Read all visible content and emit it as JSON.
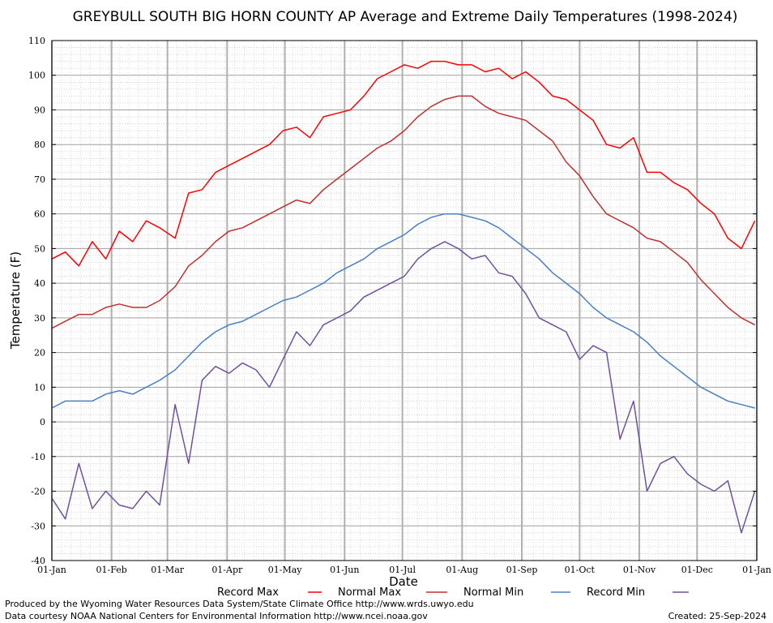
{
  "chart_data": {
    "type": "line",
    "title": "GREYBULL SOUTH BIG HORN COUNTY AP Average and Extreme Daily Temperatures (1998-2024)",
    "xlabel": "Date",
    "ylabel": "Temperature (F)",
    "ylim": [
      -40,
      110
    ],
    "yticks": [
      -40,
      -30,
      -20,
      -10,
      0,
      10,
      20,
      30,
      40,
      50,
      60,
      70,
      80,
      90,
      100,
      110
    ],
    "x_tick_labels": [
      "01-Jan",
      "01-Feb",
      "01-Mar",
      "01-Apr",
      "01-May",
      "01-Jun",
      "01-Jul",
      "01-Aug",
      "01-Sep",
      "01-Oct",
      "01-Nov",
      "01-Dec",
      "01-Jan"
    ],
    "x_tick_dates": [
      "01-Jan",
      "01-Feb",
      "01-Mar",
      "01-Apr",
      "01-May",
      "01-Jun",
      "01-Jul",
      "01-Aug",
      "01-Sep",
      "01-Oct",
      "01-Nov",
      "01-Dec",
      "01-Jan"
    ],
    "grid": true,
    "legend_position": "bottom",
    "series": [
      {
        "name": "Record Max",
        "color": "#ff0000",
        "x": [
          "01-Jan",
          "08-Jan",
          "15-Jan",
          "22-Jan",
          "29-Jan",
          "05-Feb",
          "12-Feb",
          "19-Feb",
          "26-Feb",
          "05-Mar",
          "12-Mar",
          "19-Mar",
          "26-Mar",
          "02-Apr",
          "09-Apr",
          "16-Apr",
          "23-Apr",
          "30-Apr",
          "07-May",
          "14-May",
          "21-May",
          "28-May",
          "04-Jun",
          "11-Jun",
          "18-Jun",
          "25-Jun",
          "02-Jul",
          "09-Jul",
          "16-Jul",
          "23-Jul",
          "30-Jul",
          "06-Aug",
          "13-Aug",
          "20-Aug",
          "27-Aug",
          "03-Sep",
          "10-Sep",
          "17-Sep",
          "24-Sep",
          "01-Oct",
          "08-Oct",
          "15-Oct",
          "22-Oct",
          "29-Oct",
          "05-Nov",
          "12-Nov",
          "19-Nov",
          "26-Nov",
          "03-Dec",
          "10-Dec",
          "17-Dec",
          "24-Dec",
          "31-Dec"
        ],
        "values": [
          47,
          49,
          45,
          52,
          47,
          55,
          52,
          58,
          56,
          53,
          66,
          67,
          72,
          74,
          76,
          78,
          80,
          84,
          85,
          82,
          88,
          89,
          90,
          94,
          99,
          101,
          103,
          102,
          104,
          104,
          103,
          103,
          101,
          102,
          99,
          101,
          98,
          94,
          93,
          90,
          87,
          80,
          79,
          82,
          72,
          72,
          69,
          67,
          63,
          60,
          53,
          50,
          58
        ]
      },
      {
        "name": "Normal Max",
        "color": "#c03030",
        "x": [
          "01-Jan",
          "08-Jan",
          "15-Jan",
          "22-Jan",
          "29-Jan",
          "05-Feb",
          "12-Feb",
          "19-Feb",
          "26-Feb",
          "05-Mar",
          "12-Mar",
          "19-Mar",
          "26-Mar",
          "02-Apr",
          "09-Apr",
          "16-Apr",
          "23-Apr",
          "30-Apr",
          "07-May",
          "14-May",
          "21-May",
          "28-May",
          "04-Jun",
          "11-Jun",
          "18-Jun",
          "25-Jun",
          "02-Jul",
          "09-Jul",
          "16-Jul",
          "23-Jul",
          "30-Jul",
          "06-Aug",
          "13-Aug",
          "20-Aug",
          "27-Aug",
          "03-Sep",
          "10-Sep",
          "17-Sep",
          "24-Sep",
          "01-Oct",
          "08-Oct",
          "15-Oct",
          "22-Oct",
          "29-Oct",
          "05-Nov",
          "12-Nov",
          "19-Nov",
          "26-Nov",
          "03-Dec",
          "10-Dec",
          "17-Dec",
          "24-Dec",
          "31-Dec"
        ],
        "values": [
          27,
          29,
          31,
          31,
          33,
          34,
          33,
          33,
          35,
          39,
          45,
          48,
          52,
          55,
          56,
          58,
          60,
          62,
          64,
          63,
          67,
          70,
          73,
          76,
          79,
          81,
          84,
          88,
          91,
          93,
          94,
          94,
          91,
          89,
          88,
          87,
          84,
          81,
          75,
          71,
          65,
          60,
          58,
          56,
          53,
          52,
          49,
          46,
          41,
          37,
          33,
          30,
          28
        ]
      },
      {
        "name": "Normal Min",
        "color": "#4a80c0",
        "x": [
          "01-Jan",
          "08-Jan",
          "15-Jan",
          "22-Jan",
          "29-Jan",
          "05-Feb",
          "12-Feb",
          "19-Feb",
          "26-Feb",
          "05-Mar",
          "12-Mar",
          "19-Mar",
          "26-Mar",
          "02-Apr",
          "09-Apr",
          "16-Apr",
          "23-Apr",
          "30-Apr",
          "07-May",
          "14-May",
          "21-May",
          "28-May",
          "04-Jun",
          "11-Jun",
          "18-Jun",
          "25-Jun",
          "02-Jul",
          "09-Jul",
          "16-Jul",
          "23-Jul",
          "30-Jul",
          "06-Aug",
          "13-Aug",
          "20-Aug",
          "27-Aug",
          "03-Sep",
          "10-Sep",
          "17-Sep",
          "24-Sep",
          "01-Oct",
          "08-Oct",
          "15-Oct",
          "22-Oct",
          "29-Oct",
          "05-Nov",
          "12-Nov",
          "19-Nov",
          "26-Nov",
          "03-Dec",
          "10-Dec",
          "17-Dec",
          "24-Dec",
          "31-Dec"
        ],
        "values": [
          4,
          6,
          6,
          6,
          8,
          9,
          8,
          10,
          12,
          15,
          19,
          23,
          26,
          28,
          29,
          31,
          33,
          35,
          36,
          38,
          40,
          43,
          45,
          47,
          50,
          52,
          54,
          57,
          59,
          60,
          60,
          59,
          58,
          56,
          53,
          50,
          47,
          43,
          40,
          37,
          33,
          30,
          28,
          26,
          23,
          19,
          16,
          13,
          10,
          8,
          6,
          5,
          4
        ]
      },
      {
        "name": "Record Min",
        "color": "#7050a0",
        "x": [
          "01-Jan",
          "08-Jan",
          "15-Jan",
          "22-Jan",
          "29-Jan",
          "05-Feb",
          "12-Feb",
          "19-Feb",
          "26-Feb",
          "05-Mar",
          "12-Mar",
          "19-Mar",
          "26-Mar",
          "02-Apr",
          "09-Apr",
          "16-Apr",
          "23-Apr",
          "30-Apr",
          "07-May",
          "14-May",
          "21-May",
          "28-May",
          "04-Jun",
          "11-Jun",
          "18-Jun",
          "25-Jun",
          "02-Jul",
          "09-Jul",
          "16-Jul",
          "23-Jul",
          "30-Jul",
          "06-Aug",
          "13-Aug",
          "20-Aug",
          "27-Aug",
          "03-Sep",
          "10-Sep",
          "17-Sep",
          "24-Sep",
          "01-Oct",
          "08-Oct",
          "15-Oct",
          "22-Oct",
          "29-Oct",
          "05-Nov",
          "12-Nov",
          "19-Nov",
          "26-Nov",
          "03-Dec",
          "10-Dec",
          "17-Dec",
          "24-Dec",
          "31-Dec"
        ],
        "values": [
          -22,
          -28,
          -12,
          -25,
          -20,
          -24,
          -25,
          -20,
          -24,
          5,
          -12,
          12,
          16,
          14,
          17,
          15,
          10,
          18,
          26,
          22,
          28,
          30,
          32,
          36,
          38,
          40,
          42,
          47,
          50,
          52,
          50,
          47,
          48,
          43,
          42,
          37,
          30,
          28,
          26,
          18,
          22,
          20,
          -5,
          6,
          -20,
          -12,
          -10,
          -15,
          -18,
          -20,
          -17,
          -32,
          -20
        ]
      }
    ],
    "legend": [
      "Record Max",
      "Normal Max",
      "Normal Min",
      "Record Min"
    ]
  },
  "footer": {
    "credit_line_1": "Produced by the Wyoming Water Resources Data System/State Climate Office http://www.wrds.uwyo.edu",
    "credit_line_2": "Data courtesy NOAA National Centers for Environmental Information http://www.ncei.noaa.gov",
    "created": "Created:  25-Sep-2024"
  }
}
